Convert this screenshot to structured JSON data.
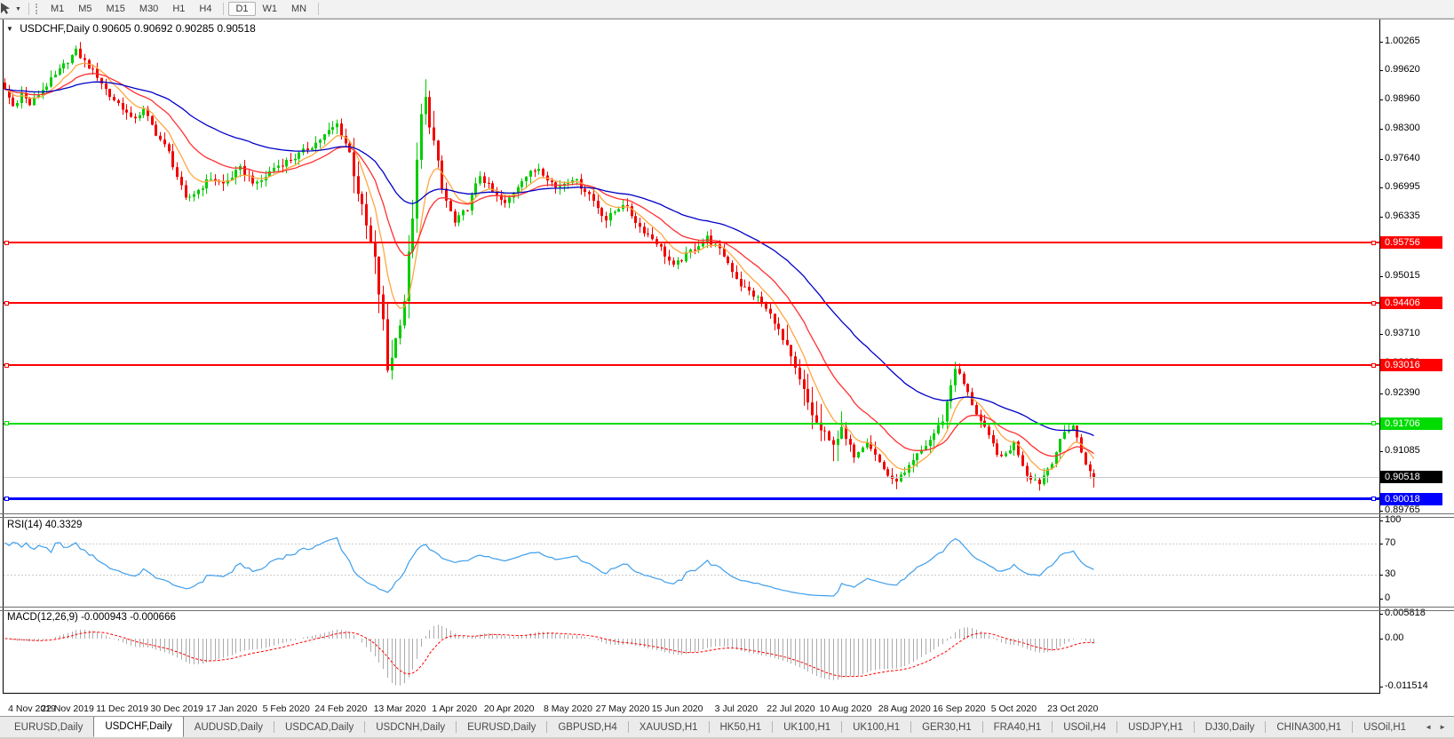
{
  "toolbar": {
    "timeframes": [
      "M1",
      "M5",
      "M15",
      "M30",
      "H1",
      "H4",
      "D1",
      "W1",
      "MN"
    ],
    "active": "D1"
  },
  "chart": {
    "collapse_glyph": "▼",
    "symbol_title": "USDCHF,Daily",
    "ohlc_text": "0.90605 0.90692 0.90285 0.90518"
  },
  "price_axis": {
    "ticks": [
      1.00265,
      0.9962,
      0.9896,
      0.983,
      0.9764,
      0.96995,
      0.96335,
      0.95675,
      0.95015,
      0.94355,
      0.9371,
      0.9305,
      0.9239,
      0.9173,
      0.91085,
      0.90425,
      0.89765
    ]
  },
  "levels": [
    {
      "price": 0.95756,
      "color": "#FE0000",
      "thickness": 2
    },
    {
      "price": 0.94406,
      "color": "#FE0000",
      "thickness": 2
    },
    {
      "price": 0.93016,
      "color": "#FE0000",
      "thickness": 2
    },
    {
      "price": 0.91706,
      "color": "#00DC00",
      "thickness": 2
    },
    {
      "price": 0.90018,
      "color": "#0000FE",
      "thickness": 3
    }
  ],
  "current_price": {
    "value": 0.90518,
    "line_color": "#C8C8C8",
    "label_bg": "#000000"
  },
  "rsi": {
    "label": "RSI(14) 40.3329",
    "period": 14,
    "value": 40.3329,
    "ticks": [
      "100",
      "70",
      "30",
      "0"
    ],
    "level_lines": [
      70,
      30
    ],
    "color": "#3E9EEB"
  },
  "macd": {
    "label": "MACD(12,26,9) -0.000943 -0.000666",
    "macd_value": -0.000943,
    "signal_value": -0.000666,
    "ticks": [
      {
        "v": 0.005818,
        "label": "0.005818"
      },
      {
        "v": 0,
        "label": "0.00"
      },
      {
        "v": -0.011514,
        "label": "-0.011514"
      }
    ],
    "histogram_color": "#ABABAB",
    "signal_color": "#FF0000"
  },
  "date_axis": {
    "ticks": [
      {
        "label": "4 Nov 2019",
        "i": 1
      },
      {
        "label": "22 Nov 2019",
        "i": 15
      },
      {
        "label": "11 Dec 2019",
        "i": 28
      },
      {
        "label": "30 Dec 2019",
        "i": 41
      },
      {
        "label": "17 Jan 2020",
        "i": 54
      },
      {
        "label": "5 Feb 2020",
        "i": 67
      },
      {
        "label": "24 Feb 2020",
        "i": 80
      },
      {
        "label": "13 Mar 2020",
        "i": 94
      },
      {
        "label": "1 Apr 2020",
        "i": 107
      },
      {
        "label": "20 Apr 2020",
        "i": 120
      },
      {
        "label": "8 May 2020",
        "i": 134
      },
      {
        "label": "27 May 2020",
        "i": 147
      },
      {
        "label": "15 Jun 2020",
        "i": 160
      },
      {
        "label": "3 Jul 2020",
        "i": 174
      },
      {
        "label": "22 Jul 2020",
        "i": 187
      },
      {
        "label": "10 Aug 2020",
        "i": 200
      },
      {
        "label": "28 Aug 2020",
        "i": 214
      },
      {
        "label": "16 Sep 2020",
        "i": 227
      },
      {
        "label": "5 Oct 2020",
        "i": 240
      },
      {
        "label": "23 Oct 2020",
        "i": 254
      }
    ]
  },
  "tab_bar": {
    "left_glyph": "◄",
    "right_glyph": "►",
    "tabs": [
      {
        "label": "EURUSD,Daily",
        "active": false
      },
      {
        "label": "USDCHF,Daily",
        "active": true
      },
      {
        "label": "AUDUSD,Daily",
        "active": false
      },
      {
        "label": "USDCAD,Daily",
        "active": false
      },
      {
        "label": "USDCNH,Daily",
        "active": false
      },
      {
        "label": "EURUSD,Daily",
        "active": false
      },
      {
        "label": "GBPUSD,H4",
        "active": false
      },
      {
        "label": "XAUUSD,H1",
        "active": false
      },
      {
        "label": "HK50,H1",
        "active": false
      },
      {
        "label": "UK100,H1",
        "active": false
      },
      {
        "label": "UK100,H1",
        "active": false
      },
      {
        "label": "GER30,H1",
        "active": false
      },
      {
        "label": "FRA40,H1",
        "active": false
      },
      {
        "label": "USOil,H4",
        "active": false
      },
      {
        "label": "USDJPY,H1",
        "active": false
      },
      {
        "label": "DJ30,Daily",
        "active": false
      },
      {
        "label": "CHINA300,H1",
        "active": false
      },
      {
        "label": "USOil,H1",
        "active": false
      }
    ]
  },
  "chart_data": {
    "type": "candlestick",
    "symbol": "USDCHF",
    "timeframe": "Daily",
    "candle_count": 260,
    "visible_price_range": [
      0.89765,
      1.00265
    ],
    "last_candle": {
      "open": 0.90605,
      "high": 0.90692,
      "low": 0.90285,
      "close": 0.90518
    },
    "bull_color": "#00CC00",
    "bear_color": "#F20000",
    "ma_lines": [
      {
        "period": 8,
        "color": "#FFA640"
      },
      {
        "period": 20,
        "color": "#FF3030"
      },
      {
        "period": 52,
        "color": "#0000C8"
      }
    ],
    "high_vol_ranges": [
      [
        83,
        104
      ],
      [
        186,
        199
      ]
    ],
    "price_waypoints": [
      [
        0,
        0.992
      ],
      [
        2,
        0.9882
      ],
      [
        4,
        0.991
      ],
      [
        6,
        0.9886
      ],
      [
        9,
        0.992
      ],
      [
        12,
        0.995
      ],
      [
        15,
        0.9985
      ],
      [
        17,
        1.0005
      ],
      [
        19,
        0.9982
      ],
      [
        22,
        0.995
      ],
      [
        25,
        0.9905
      ],
      [
        28,
        0.988
      ],
      [
        30,
        0.9852
      ],
      [
        33,
        0.9872
      ],
      [
        36,
        0.9822
      ],
      [
        39,
        0.9778
      ],
      [
        43,
        0.9672
      ],
      [
        46,
        0.9695
      ],
      [
        49,
        0.9722
      ],
      [
        52,
        0.9708
      ],
      [
        56,
        0.9742
      ],
      [
        60,
        0.9706
      ],
      [
        64,
        0.9745
      ],
      [
        69,
        0.9768
      ],
      [
        74,
        0.98
      ],
      [
        79,
        0.9842
      ],
      [
        82,
        0.9778
      ],
      [
        85,
        0.965
      ],
      [
        88,
        0.9535
      ],
      [
        90,
        0.9395
      ],
      [
        91,
        0.9292
      ],
      [
        93,
        0.936
      ],
      [
        95,
        0.945
      ],
      [
        97,
        0.964
      ],
      [
        99,
        0.986
      ],
      [
        100,
        0.9895
      ],
      [
        102,
        0.98
      ],
      [
        104,
        0.9695
      ],
      [
        107,
        0.962
      ],
      [
        110,
        0.9655
      ],
      [
        113,
        0.9728
      ],
      [
        116,
        0.969
      ],
      [
        119,
        0.9662
      ],
      [
        123,
        0.972
      ],
      [
        127,
        0.9745
      ],
      [
        131,
        0.97
      ],
      [
        135,
        0.9722
      ],
      [
        139,
        0.9685
      ],
      [
        143,
        0.9628
      ],
      [
        147,
        0.9665
      ],
      [
        151,
        0.9612
      ],
      [
        155,
        0.9578
      ],
      [
        159,
        0.9522
      ],
      [
        163,
        0.9558
      ],
      [
        167,
        0.9588
      ],
      [
        171,
        0.9548
      ],
      [
        175,
        0.9482
      ],
      [
        179,
        0.9452
      ],
      [
        183,
        0.9402
      ],
      [
        187,
        0.9312
      ],
      [
        190,
        0.924
      ],
      [
        193,
        0.917
      ],
      [
        196,
        0.9128
      ],
      [
        199,
        0.9152
      ],
      [
        202,
        0.9102
      ],
      [
        205,
        0.9135
      ],
      [
        208,
        0.9085
      ],
      [
        211,
        0.9042
      ],
      [
        214,
        0.9058
      ],
      [
        217,
        0.91
      ],
      [
        220,
        0.9135
      ],
      [
        223,
        0.918
      ],
      [
        226,
        0.9298
      ],
      [
        228,
        0.926
      ],
      [
        231,
        0.9195
      ],
      [
        234,
        0.914
      ],
      [
        237,
        0.9092
      ],
      [
        240,
        0.9128
      ],
      [
        243,
        0.9058
      ],
      [
        246,
        0.904
      ],
      [
        249,
        0.9088
      ],
      [
        252,
        0.9152
      ],
      [
        254,
        0.9168
      ],
      [
        256,
        0.9108
      ],
      [
        258,
        0.9062
      ],
      [
        259,
        0.90518
      ]
    ]
  }
}
